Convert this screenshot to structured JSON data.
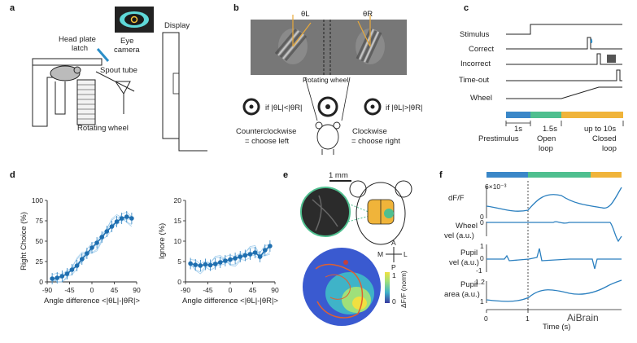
{
  "panels": {
    "a": {
      "letter": "a",
      "display": "Display",
      "head_plate_latch_1": "Head plate",
      "head_plate_latch_2": "latch",
      "eye_camera_1": "Eye",
      "eye_camera_2": "camera",
      "spout_tube": "Spout tube",
      "rotating_wheel": "Rotating wheel"
    },
    "b": {
      "letter": "b",
      "theta_l": "θL",
      "theta_r": "θR",
      "rotating_wheel": "Rotating wheel",
      "cond_left": "if |θL|<|θR|",
      "cond_right": "if |θL|>|θR|",
      "ccw_1": "Counterclockwise",
      "ccw_2": "= choose left",
      "cw_1": "Clockwise",
      "cw_2": "= choose right"
    },
    "c": {
      "letter": "c",
      "rows": [
        "Stimulus",
        "Correct",
        "Incorrect",
        "Time-out",
        "Wheel"
      ],
      "t1": "1s",
      "t2": "1.5s",
      "t3": "up to 10s",
      "ph1": "Prestimulus",
      "ph2a": "Open",
      "ph2b": "loop",
      "ph3a": "Closed",
      "ph3b": "loop",
      "colors": {
        "prestimulus": "#3a87c8",
        "open": "#4fbf8f",
        "closed": "#f0b43a"
      }
    },
    "d": {
      "letter": "d"
    },
    "e": {
      "letter": "e",
      "scale": "1 mm",
      "compass_a": "A",
      "compass_p": "P",
      "compass_m": "M",
      "compass_l": "L",
      "cbar_top": "1",
      "cbar_bottom": "0",
      "cbar_label": "ΔF/F (norm)"
    },
    "f": {
      "letter": "f",
      "dff": "dF/F",
      "exp": "6×10⁻³",
      "dff_lo": "0",
      "wheel1": "Wheel",
      "wheel2": "vel (a.u.)",
      "wheel_tick": "0",
      "pvel1": "Pupil",
      "pvel2": "vel (a.u.)",
      "pvel_hi": "1",
      "pvel_mid": "0",
      "pvel_lo": "-1",
      "parea1": "Pupil",
      "parea2": "area (a.u.)",
      "parea_hi": "1.2",
      "parea_lo": "1",
      "x0": "0",
      "x1": "1",
      "xlabel": "Time (s)"
    }
  },
  "watermark": "AiBrain",
  "chart_data": [
    {
      "type": "line",
      "title": "",
      "xlabel": "Angle difference <|θL|-|θR|>",
      "ylabel": "Right Choice (%)",
      "x": [
        -80,
        -70,
        -60,
        -50,
        -40,
        -30,
        -20,
        -10,
        0,
        10,
        20,
        30,
        40,
        50,
        60,
        70,
        80
      ],
      "ylim": [
        0,
        100
      ],
      "xticks": [
        "-90",
        "-45",
        "0",
        "45",
        "90"
      ],
      "yticks": [
        "0",
        "25",
        "50",
        "75",
        "100"
      ],
      "series": [
        {
          "values": [
            4,
            5,
            7,
            10,
            15,
            20,
            28,
            35,
            42,
            48,
            55,
            62,
            68,
            74,
            78,
            80,
            78
          ]
        }
      ]
    },
    {
      "type": "line",
      "title": "",
      "xlabel": "Angle difference <|θL|-|θR|>",
      "ylabel": "Ignore (%)",
      "x": [
        -80,
        -70,
        -60,
        -50,
        -40,
        -30,
        -20,
        -10,
        0,
        10,
        20,
        30,
        40,
        50,
        60,
        70,
        80
      ],
      "ylim": [
        0,
        20
      ],
      "xticks": [
        "-90",
        "-45",
        "0",
        "45",
        "90"
      ],
      "yticks": [
        "0",
        "5",
        "10",
        "15",
        "20"
      ],
      "series": [
        {
          "values": [
            4.5,
            4.2,
            4.0,
            4.3,
            4.1,
            4.4,
            4.8,
            5.2,
            5.5,
            5.8,
            6.2,
            6.5,
            6.8,
            7.2,
            6.2,
            7.8,
            8.8
          ]
        }
      ]
    }
  ]
}
